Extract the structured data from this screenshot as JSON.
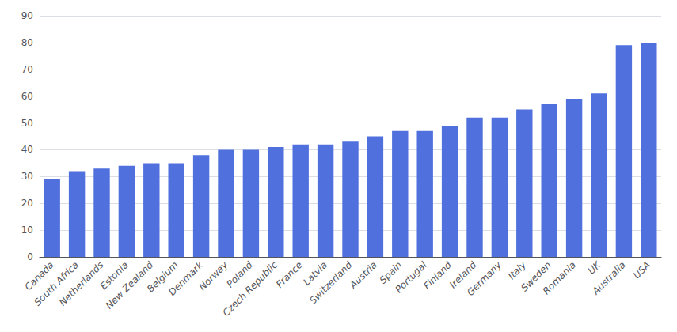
{
  "chart_data": {
    "type": "bar",
    "categories": [
      "Canada",
      "South Africa",
      "Netherlands",
      "Estonia",
      "New Zealand",
      "Belgium",
      "Denmark",
      "Norway",
      "Poland",
      "Czech Republic",
      "France",
      "Latvia",
      "Switzerland",
      "Austria",
      "Spain",
      "Portugal",
      "Finland",
      "Ireland",
      "Germany",
      "Italy",
      "Sweden",
      "Romania",
      "UK",
      "Australia",
      "USA"
    ],
    "values": [
      29,
      32,
      33,
      34,
      35,
      35,
      38,
      40,
      40,
      41,
      42,
      42,
      43,
      45,
      47,
      47,
      49,
      52,
      52,
      55,
      57,
      59,
      61,
      79,
      80
    ],
    "ylim": [
      0,
      90
    ],
    "yticks": [
      0,
      10,
      20,
      30,
      40,
      50,
      60,
      70,
      80,
      90
    ],
    "grid": true
  }
}
